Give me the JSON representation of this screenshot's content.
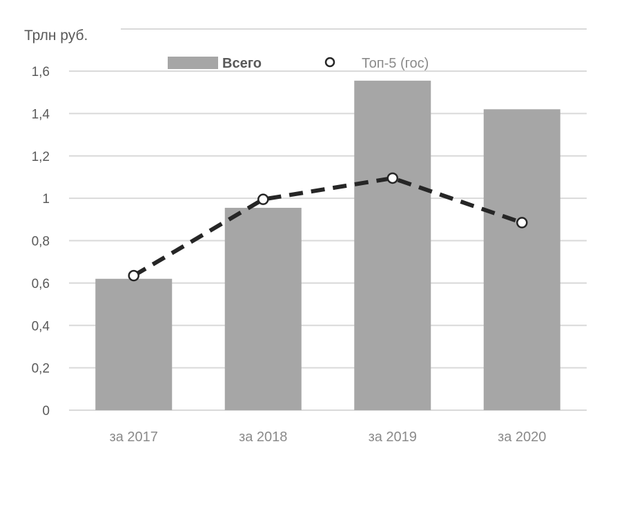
{
  "chart_data": {
    "type": "bar",
    "unit_label": "Трлн  руб.",
    "categories": [
      "за 2017",
      "за 2018",
      "за 2019",
      "за 2020"
    ],
    "series": [
      {
        "name": "Всего",
        "type": "bar",
        "color": "#a6a6a6",
        "values": [
          0.62,
          0.955,
          1.555,
          1.42
        ]
      },
      {
        "name": "Топ-5 (гос)",
        "type": "line",
        "style": "dashed",
        "color": "#262626",
        "marker": "hollow-circle",
        "values": [
          0.635,
          0.995,
          1.095,
          0.885
        ]
      }
    ],
    "y_ticks": [
      "0",
      "0,2",
      "0,4",
      "0,6",
      "0,8",
      "1",
      "1,2",
      "1,4",
      "1,6"
    ],
    "y_tick_values": [
      0,
      0.2,
      0.4,
      0.6,
      0.8,
      1.0,
      1.2,
      1.4,
      1.6
    ],
    "ylim": [
      0,
      1.6
    ],
    "grid": true,
    "gridline_color": "#d9d9d9",
    "legend_position": "top"
  }
}
